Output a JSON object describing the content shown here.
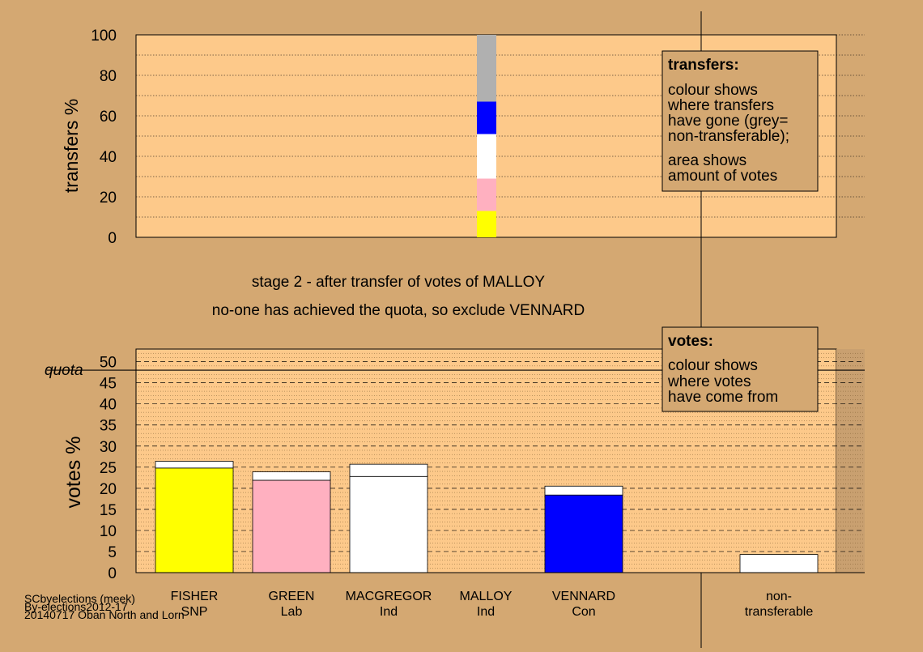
{
  "colors": {
    "background": "#d4a872",
    "plot_fill": "#fdc98a",
    "snp": "#ffff00",
    "lab": "#ffb0c0",
    "ind": "#ffffff",
    "con": "#0000ff",
    "nontransferable": "#b0b0b0"
  },
  "stage_text": {
    "line1": "stage 2 - after transfer of votes of MALLOY",
    "line2": "no-one has achieved the quota, so exclude VENNARD"
  },
  "legend_transfers": {
    "title": "transfers:",
    "lines": [
      "colour shows",
      "where transfers",
      "have gone (grey=",
      "non-transferable);"
    ],
    "lines2": [
      "area shows",
      "amount of votes"
    ]
  },
  "legend_votes": {
    "title": "votes:",
    "lines": [
      "colour shows",
      "where votes",
      "have come from"
    ]
  },
  "footer": {
    "line1": "SCbyelections (meek)",
    "line2": "By-elections2012-17",
    "line3": "20140717 Oban North and Lorn"
  },
  "chart_data": [
    {
      "type": "bar",
      "ylabel": "transfers %",
      "ylim": [
        0,
        100
      ],
      "yticks": [
        0,
        20,
        40,
        60,
        80,
        100
      ],
      "stacked_segments": [
        {
          "to": "FISHER",
          "color": "#ffff00",
          "value": 13
        },
        {
          "to": "GREEN",
          "color": "#ffb0c0",
          "value": 16
        },
        {
          "to": "MACGREGOR",
          "color": "#ffffff",
          "value": 22
        },
        {
          "to": "VENNARD",
          "color": "#0000ff",
          "value": 16
        },
        {
          "to": "non-transferable",
          "color": "#b0b0b0",
          "value": 33
        }
      ]
    },
    {
      "type": "bar",
      "ylabel": "votes %",
      "ylim": [
        0,
        53
      ],
      "yticks": [
        0,
        5,
        10,
        15,
        20,
        25,
        30,
        35,
        40,
        45,
        50
      ],
      "quota": 48,
      "quota_label": "quota",
      "categories": [
        {
          "name": "FISHER",
          "party": "SNP",
          "base": 24.8,
          "transfer": 1.6,
          "color": "#ffff00"
        },
        {
          "name": "GREEN",
          "party": "Lab",
          "base": 21.9,
          "transfer": 2.0,
          "color": "#ffb0c0"
        },
        {
          "name": "MACGREGOR",
          "party": "Ind",
          "base": 22.8,
          "transfer": 2.9,
          "color": "#ffffff"
        },
        {
          "name": "MALLOY",
          "party": "Ind",
          "base": 0,
          "transfer": 0,
          "color": "#ffffff"
        },
        {
          "name": "VENNARD",
          "party": "Con",
          "base": 18.4,
          "transfer": 2.1,
          "color": "#0000ff"
        },
        {
          "name": "non-",
          "party": "transferable",
          "base": 0,
          "transfer": 4.3,
          "color": "#ffffff"
        }
      ]
    }
  ]
}
